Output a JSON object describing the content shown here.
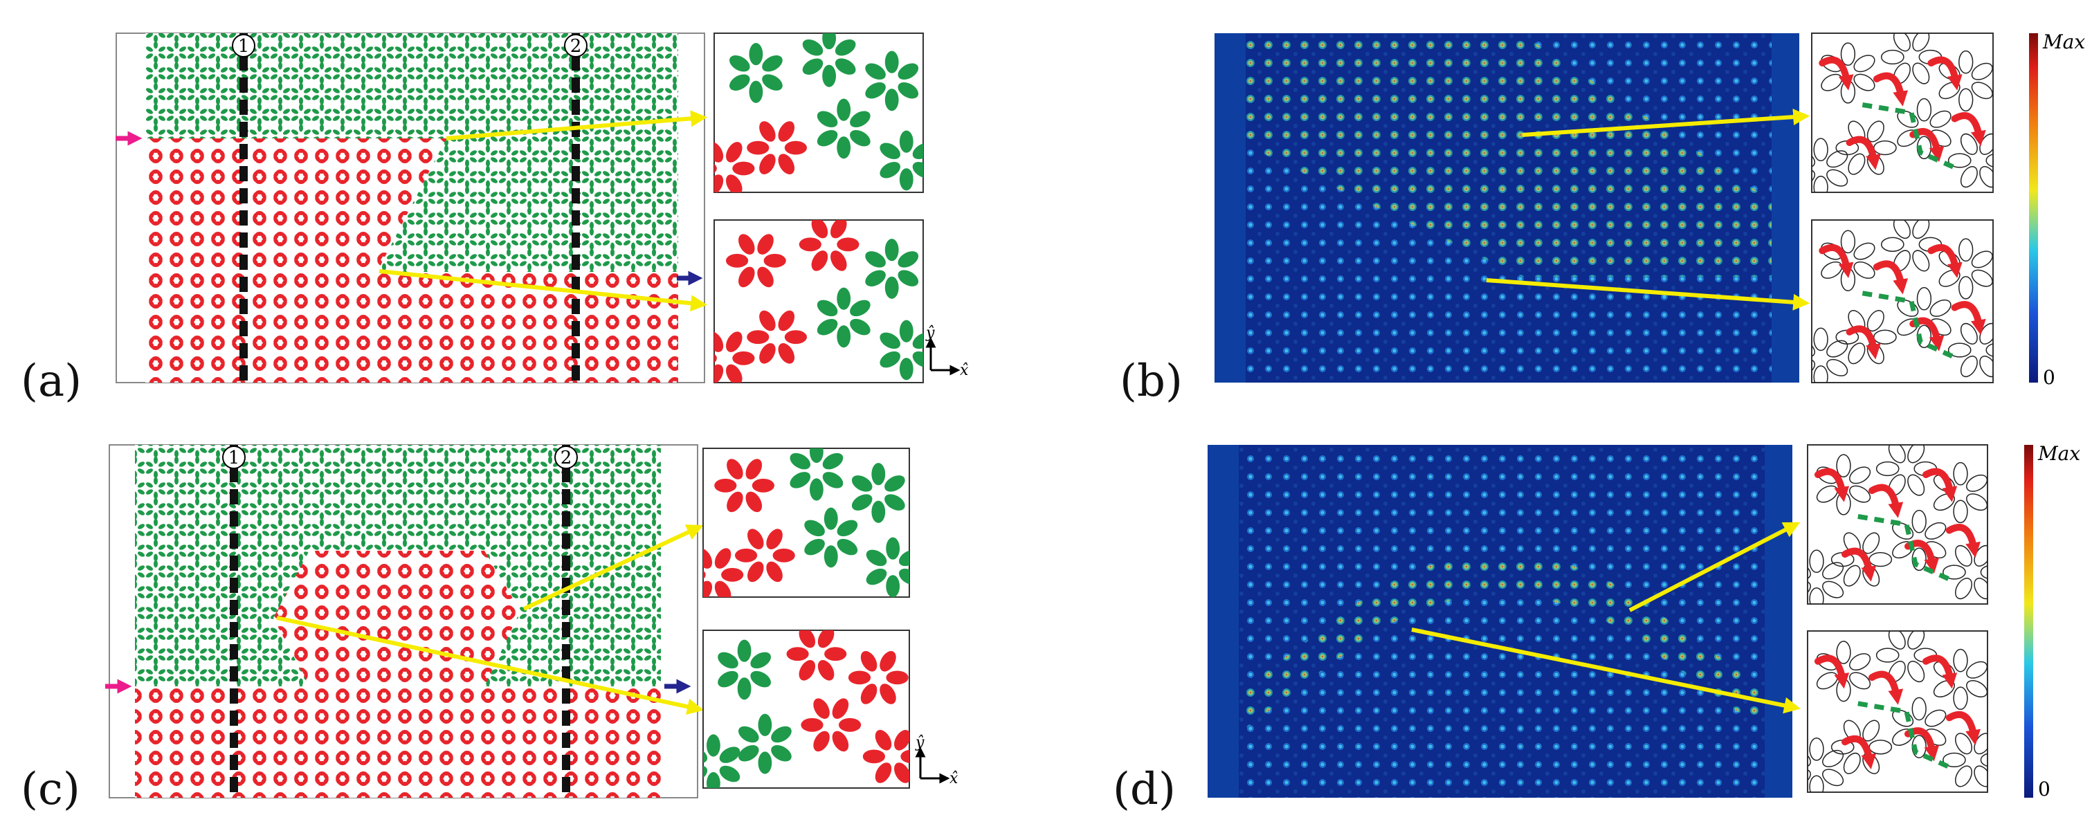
{
  "panels": {
    "a": {
      "label": "(a)",
      "line_1": "1",
      "line_2": "2"
    },
    "b": {
      "label": "(b)",
      "colorbar_max": "Max",
      "colorbar_min": "0"
    },
    "c": {
      "label": "(c)",
      "line_1": "1",
      "line_2": "2"
    },
    "d": {
      "label": "(d)",
      "colorbar_max": "Max",
      "colorbar_min": "0"
    }
  },
  "axes": {
    "y": "ŷ",
    "x": "x̂"
  },
  "colors": {
    "green": "#1e9a4a",
    "red": "#e8242b",
    "field_bg": "#0c2b8c",
    "arrow": "#f5ec00",
    "input_arrow": "#ec1c8c",
    "output_arrow": "#24258f"
  }
}
